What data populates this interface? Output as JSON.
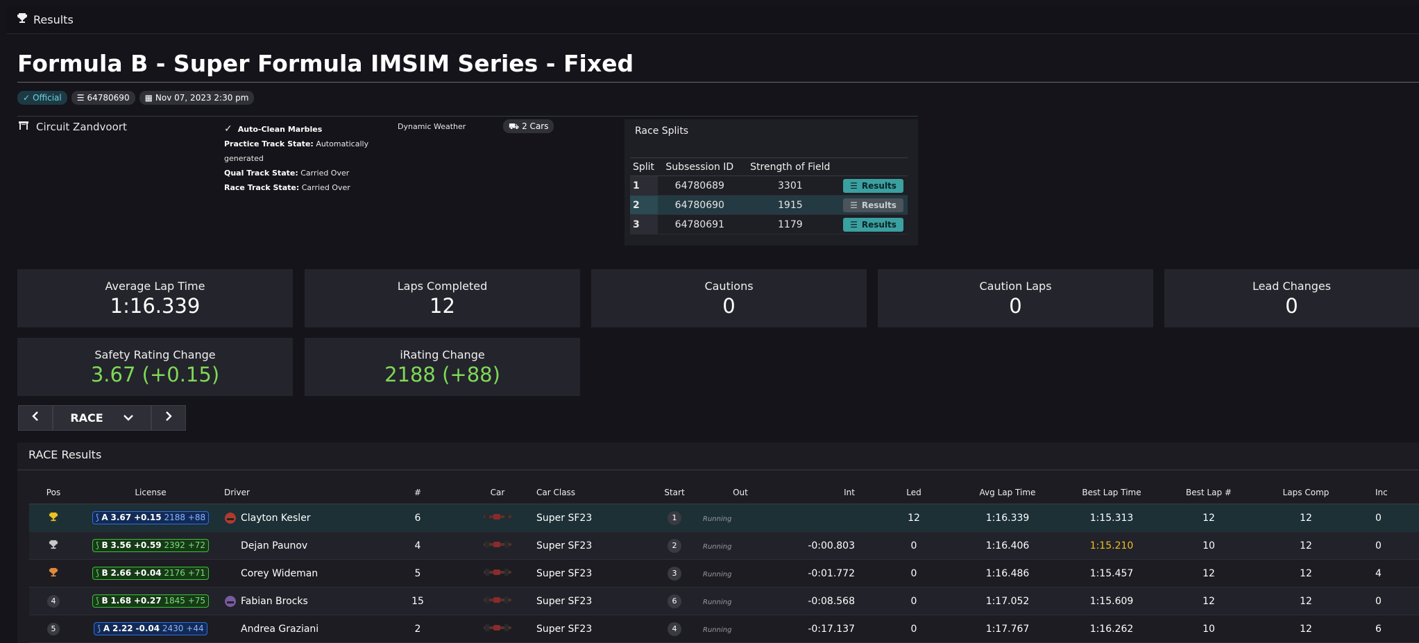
{
  "topbar": {
    "icon": "trophy-icon",
    "title": "Results"
  },
  "page": {
    "title": "Formula B - Super Formula IMSIM Series - Fixed"
  },
  "badges": {
    "official": "Official",
    "subsession": "64780690",
    "date": "Nov 07, 2023 2:30 pm"
  },
  "track": {
    "name": "Circuit Zandvoort",
    "auto_clean": "Auto-Clean Marbles",
    "practice_label": "Practice Track State:",
    "practice_value": "Automatically generated",
    "qual_label": "Qual Track State:",
    "qual_value": "Carried Over",
    "race_label": "Race Track State:",
    "race_value": "Carried Over",
    "weather": "Dynamic Weather",
    "cars": "2 Cars"
  },
  "splits": {
    "title": "Race Splits",
    "headers": [
      "Split",
      "Subsession ID",
      "Strength of Field"
    ],
    "rows": [
      {
        "split": "1",
        "id": "64780689",
        "sof": "3301",
        "button": "Results"
      },
      {
        "split": "2",
        "id": "64780690",
        "sof": "1915",
        "button": "Results"
      },
      {
        "split": "3",
        "id": "64780691",
        "sof": "1179",
        "button": "Results"
      }
    ]
  },
  "stats": [
    {
      "label": "Average Lap Time",
      "value": "1:16.339"
    },
    {
      "label": "Laps Completed",
      "value": "12"
    },
    {
      "label": "Cautions",
      "value": "0"
    },
    {
      "label": "Caution Laps",
      "value": "0"
    },
    {
      "label": "Lead Changes",
      "value": "0"
    },
    {
      "label": "Safety Rating Change",
      "value": "3.67 (+0.15)"
    },
    {
      "label": "iRating Change",
      "value": "2188 (+88)"
    }
  ],
  "nav": {
    "session": "RACE"
  },
  "results": {
    "title": "RACE Results",
    "headers": [
      "Pos",
      "License",
      "Driver",
      "#",
      "Car",
      "Car Class",
      "Start",
      "Out",
      "Int",
      "Led",
      "Avg Lap Time",
      "Best Lap Time",
      "Best Lap #",
      "Laps Comp",
      "Inc"
    ],
    "rows": [
      {
        "pos": "",
        "pos_icon": "trophy-gold-icon",
        "lic_class": "A",
        "lic_sr": "3.67",
        "lic_delta": "+0.15",
        "lic_ir": "2188 +88",
        "lic_color": "blue",
        "driver": "Clayton Kesler",
        "num": "6",
        "car_class": "Super SF23",
        "start": "1",
        "out": "Running",
        "int": "",
        "led": "12",
        "avg": "1:16.339",
        "best": "1:15.313",
        "best_lap": "12",
        "laps": "12",
        "inc": "0"
      },
      {
        "pos": "",
        "pos_icon": "trophy-silver-icon",
        "lic_class": "B",
        "lic_sr": "3.56",
        "lic_delta": "+0.59",
        "lic_ir": "2392 +72",
        "lic_color": "green",
        "driver": "Dejan Paunov",
        "num": "4",
        "car_class": "Super SF23",
        "start": "2",
        "out": "Running",
        "int": "-0:00.803",
        "led": "0",
        "avg": "1:16.406",
        "best": "1:15.210",
        "best_lap": "10",
        "laps": "12",
        "inc": "0"
      },
      {
        "pos": "",
        "pos_icon": "trophy-bronze-icon",
        "lic_class": "B",
        "lic_sr": "2.66",
        "lic_delta": "+0.04",
        "lic_ir": "2176 +71",
        "lic_color": "green",
        "driver": "Corey Wideman",
        "num": "5",
        "car_class": "Super SF23",
        "start": "3",
        "out": "Running",
        "int": "-0:01.772",
        "led": "0",
        "avg": "1:16.486",
        "best": "1:15.457",
        "best_lap": "12",
        "laps": "12",
        "inc": "4"
      },
      {
        "pos": "4",
        "pos_icon": "",
        "lic_class": "B",
        "lic_sr": "1.68",
        "lic_delta": "+0.27",
        "lic_ir": "1845 +75",
        "lic_color": "green",
        "driver": "Fabian Brocks",
        "num": "15",
        "car_class": "Super SF23",
        "start": "6",
        "out": "Running",
        "int": "-0:08.568",
        "led": "0",
        "avg": "1:17.052",
        "best": "1:15.609",
        "best_lap": "12",
        "laps": "12",
        "inc": "0"
      },
      {
        "pos": "5",
        "pos_icon": "",
        "lic_class": "A",
        "lic_sr": "2.22",
        "lic_delta": "-0.04",
        "lic_ir": "2430 +44",
        "lic_color": "blue",
        "driver": "Andrea Graziani",
        "num": "2",
        "car_class": "Super SF23",
        "start": "4",
        "out": "Running",
        "int": "-0:17.137",
        "led": "0",
        "avg": "1:17.767",
        "best": "1:16.262",
        "best_lap": "10",
        "laps": "12",
        "inc": "6"
      }
    ]
  },
  "colors": {
    "accent_teal": "#3aa0a0",
    "positive_green": "#7ed957",
    "fastest_lap_gold": "#f0c020",
    "license_a_blue": "#2f6fe0",
    "license_b_green": "#3fbf3f"
  }
}
